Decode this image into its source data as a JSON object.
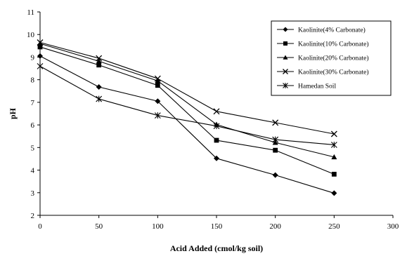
{
  "chart_data": {
    "type": "line",
    "title": "",
    "xlabel": "Acid Added (cmol/kg soil)",
    "ylabel": "pH",
    "xlim": [
      0,
      300
    ],
    "ylim": [
      2,
      11
    ],
    "xticks": [
      0,
      50,
      100,
      150,
      200,
      250,
      300
    ],
    "yticks": [
      2,
      3,
      4,
      5,
      6,
      7,
      8,
      9,
      10,
      11
    ],
    "grid": false,
    "legend_position": "top-right",
    "x": [
      0,
      50,
      100,
      150,
      200,
      250
    ],
    "series": [
      {
        "name": "Kaolinite(4% Carbonate)",
        "marker": "diamond",
        "values": [
          9.05,
          7.68,
          7.05,
          4.52,
          3.78,
          2.98
        ]
      },
      {
        "name": "Kaolinite(10% Carbonate)",
        "marker": "square",
        "values": [
          9.45,
          8.65,
          7.75,
          5.32,
          4.88,
          3.82
        ]
      },
      {
        "name": "Kaolinite(20% Carbonate)",
        "marker": "triangle",
        "values": [
          9.6,
          8.82,
          7.95,
          6.02,
          5.22,
          4.58
        ]
      },
      {
        "name": "Kaolinite(30% Carbonate)",
        "marker": "x",
        "values": [
          9.65,
          8.95,
          8.05,
          6.6,
          6.1,
          5.6
        ]
      },
      {
        "name": "Hamedan Soil",
        "marker": "asterisk",
        "values": [
          8.6,
          7.15,
          6.42,
          5.95,
          5.35,
          5.12
        ]
      }
    ]
  }
}
